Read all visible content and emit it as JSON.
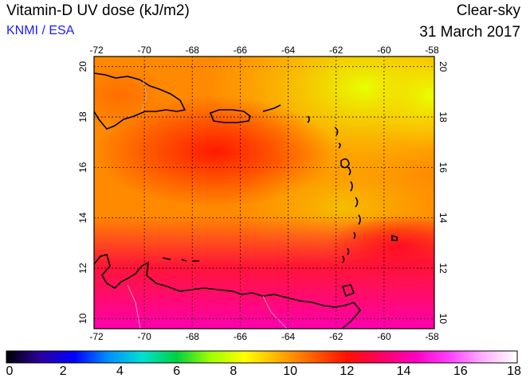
{
  "header": {
    "title": "Vitamin-D UV dose (kJ/m2)",
    "credit": "KNMI / ESA",
    "sky": "Clear-sky",
    "date": "31 March 2017"
  },
  "map": {
    "lon_ticks": [
      "-72",
      "-70",
      "-68",
      "-66",
      "-64",
      "-62",
      "-60",
      "-58"
    ],
    "lat_ticks": [
      "20",
      "18",
      "16",
      "14",
      "12",
      "10"
    ]
  },
  "colorbar": {
    "labels": [
      "0",
      "2",
      "4",
      "6",
      "8",
      "10",
      "12",
      "14",
      "16",
      "18"
    ],
    "min": 0,
    "max": 18,
    "colors": [
      "#000000",
      "#2a00a0",
      "#0000ff",
      "#0090ff",
      "#00e0d0",
      "#00d040",
      "#a0ff00",
      "#ffff00",
      "#ffb000",
      "#ff6000",
      "#ff1000",
      "#ff0060",
      "#ff00c0",
      "#ff40ff",
      "#ffb0ff",
      "#ffffff"
    ]
  }
}
